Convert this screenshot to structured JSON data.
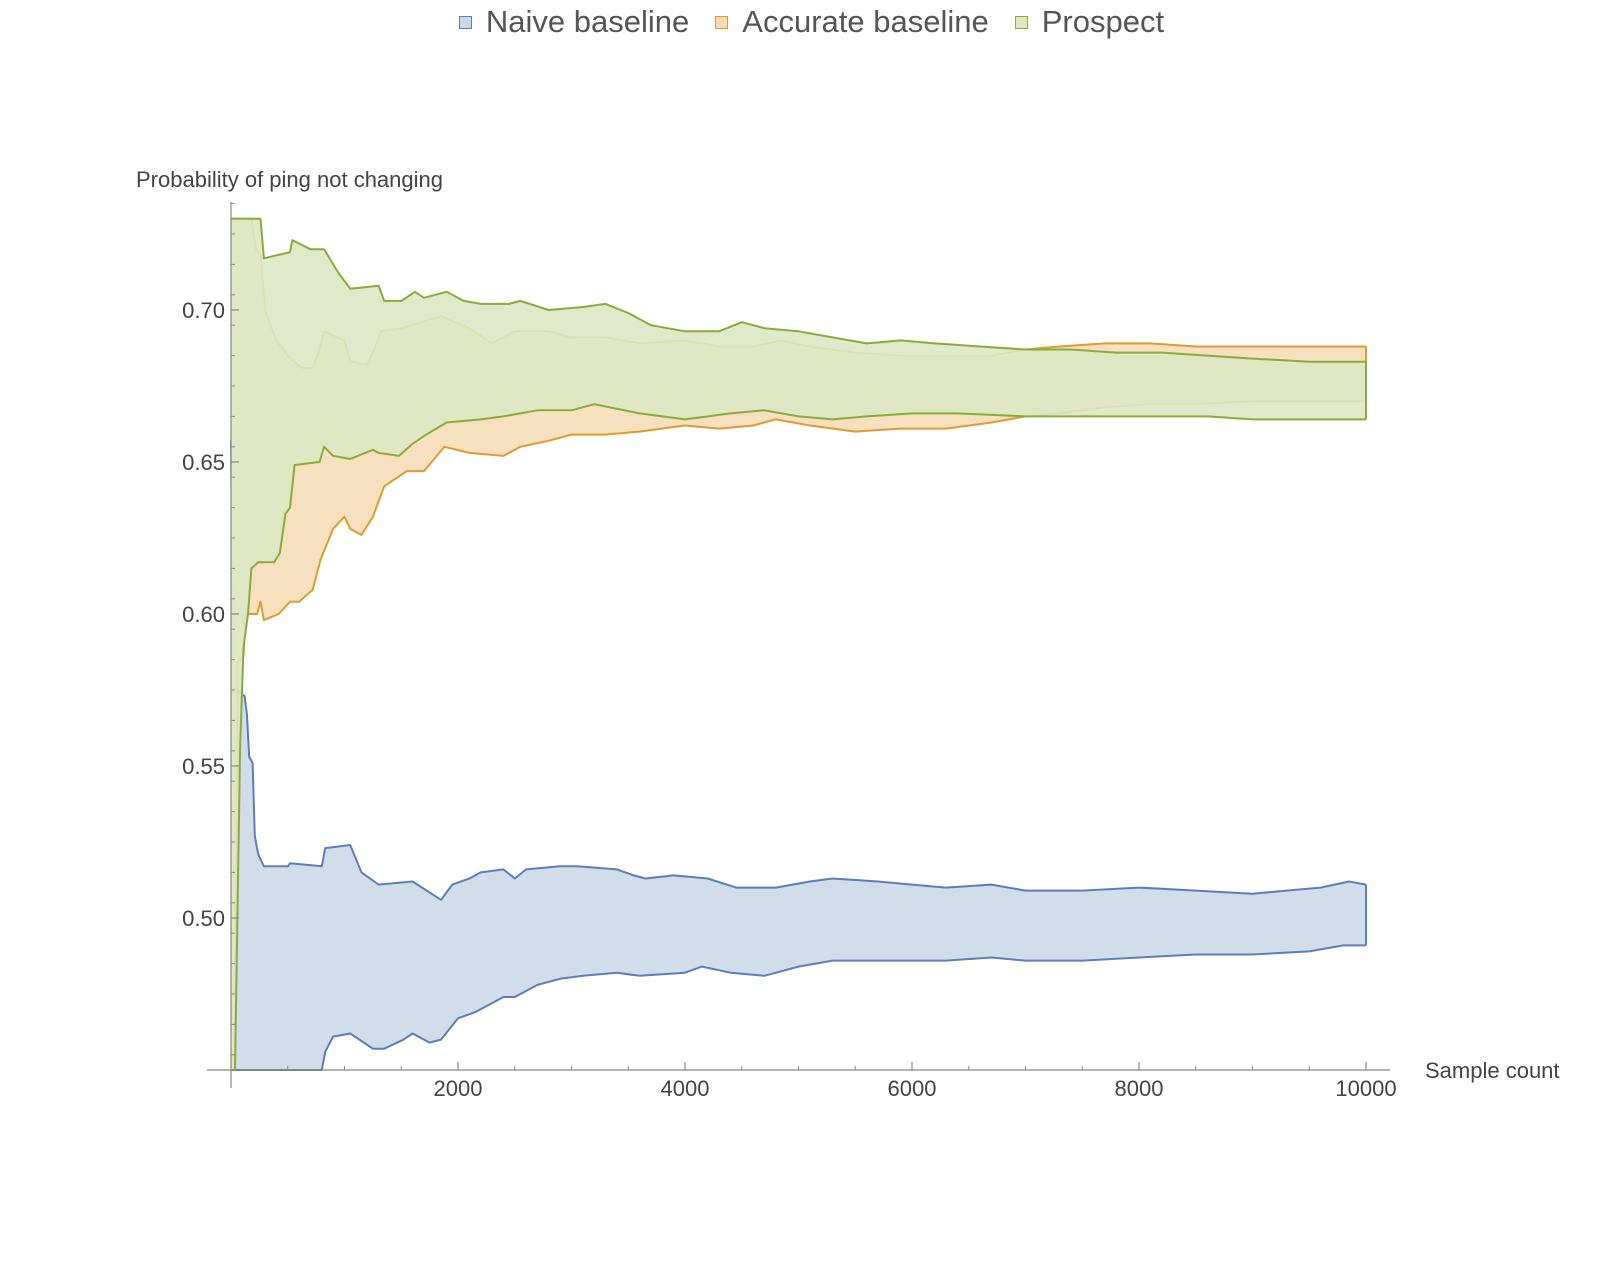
{
  "chart_data": {
    "type": "area",
    "title": "",
    "xlabel": "Sample count",
    "ylabel": "Probability of ping not changing",
    "xlim": [
      -250,
      10230
    ],
    "ylim": [
      0.45,
      0.735
    ],
    "x_ticks": [
      {
        "value": 2000,
        "label": "2000"
      },
      {
        "value": 4000,
        "label": "4000"
      },
      {
        "value": 6000,
        "label": "6000"
      },
      {
        "value": 8000,
        "label": "8000"
      },
      {
        "value": 10000,
        "label": "10000"
      }
    ],
    "y_ticks": [
      {
        "value": 0.5,
        "label": "0.50"
      },
      {
        "value": 0.55,
        "label": "0.55"
      },
      {
        "value": 0.6,
        "label": "0.60"
      },
      {
        "value": 0.65,
        "label": "0.65"
      },
      {
        "value": 0.7,
        "label": "0.70"
      }
    ],
    "grid": false,
    "legend_position": "top-center",
    "series": [
      {
        "name": "Naive baseline",
        "stroke": "#5b7fba",
        "fill": "#cdd9e8",
        "upper": [
          [
            0,
            0.657
          ],
          [
            20,
            0.576
          ],
          [
            80,
            0.574
          ],
          [
            120,
            0.573
          ],
          [
            140,
            0.567
          ],
          [
            160,
            0.553
          ],
          [
            190,
            0.551
          ],
          [
            210,
            0.527
          ],
          [
            240,
            0.521
          ],
          [
            290,
            0.517
          ],
          [
            500,
            0.517
          ],
          [
            520,
            0.518
          ],
          [
            800,
            0.517
          ],
          [
            830,
            0.523
          ],
          [
            1050,
            0.524
          ],
          [
            1150,
            0.515
          ],
          [
            1300,
            0.511
          ],
          [
            1600,
            0.512
          ],
          [
            1850,
            0.506
          ],
          [
            1950,
            0.511
          ],
          [
            2100,
            0.513
          ],
          [
            2200,
            0.515
          ],
          [
            2400,
            0.516
          ],
          [
            2500,
            0.513
          ],
          [
            2600,
            0.516
          ],
          [
            2900,
            0.517
          ],
          [
            3050,
            0.517
          ],
          [
            3400,
            0.516
          ],
          [
            3550,
            0.514
          ],
          [
            3650,
            0.513
          ],
          [
            3900,
            0.514
          ],
          [
            4200,
            0.513
          ],
          [
            4450,
            0.51
          ],
          [
            4800,
            0.51
          ],
          [
            5100,
            0.512
          ],
          [
            5300,
            0.513
          ],
          [
            5700,
            0.512
          ],
          [
            6000,
            0.511
          ],
          [
            6300,
            0.51
          ],
          [
            6700,
            0.511
          ],
          [
            7000,
            0.509
          ],
          [
            7500,
            0.509
          ],
          [
            8000,
            0.51
          ],
          [
            8500,
            0.509
          ],
          [
            9000,
            0.508
          ],
          [
            9300,
            0.509
          ],
          [
            9600,
            0.51
          ],
          [
            9850,
            0.512
          ],
          [
            10000,
            0.511
          ]
        ],
        "lower": [
          [
            0,
            0.45
          ],
          [
            20,
            0.45
          ],
          [
            800,
            0.45
          ],
          [
            830,
            0.456
          ],
          [
            900,
            0.461
          ],
          [
            1050,
            0.462
          ],
          [
            1250,
            0.457
          ],
          [
            1350,
            0.457
          ],
          [
            1520,
            0.46
          ],
          [
            1600,
            0.462
          ],
          [
            1750,
            0.459
          ],
          [
            1850,
            0.46
          ],
          [
            2000,
            0.467
          ],
          [
            2150,
            0.469
          ],
          [
            2300,
            0.472
          ],
          [
            2400,
            0.474
          ],
          [
            2500,
            0.474
          ],
          [
            2700,
            0.478
          ],
          [
            2900,
            0.48
          ],
          [
            3100,
            0.481
          ],
          [
            3400,
            0.482
          ],
          [
            3600,
            0.481
          ],
          [
            4000,
            0.482
          ],
          [
            4150,
            0.484
          ],
          [
            4400,
            0.482
          ],
          [
            4700,
            0.481
          ],
          [
            5000,
            0.484
          ],
          [
            5300,
            0.486
          ],
          [
            5800,
            0.486
          ],
          [
            6300,
            0.486
          ],
          [
            6700,
            0.487
          ],
          [
            7000,
            0.486
          ],
          [
            7500,
            0.486
          ],
          [
            8000,
            0.487
          ],
          [
            8500,
            0.488
          ],
          [
            9000,
            0.488
          ],
          [
            9500,
            0.489
          ],
          [
            9800,
            0.491
          ],
          [
            10000,
            0.491
          ]
        ]
      },
      {
        "name": "Accurate baseline",
        "stroke": "#e19c2e",
        "fill": "#f6ddb8",
        "upper": [
          [
            0,
            0.73
          ],
          [
            180,
            0.73
          ],
          [
            220,
            0.72
          ],
          [
            260,
            0.718
          ],
          [
            300,
            0.7
          ],
          [
            400,
            0.69
          ],
          [
            500,
            0.685
          ],
          [
            620,
            0.681
          ],
          [
            720,
            0.681
          ],
          [
            780,
            0.687
          ],
          [
            820,
            0.693
          ],
          [
            1000,
            0.69
          ],
          [
            1050,
            0.683
          ],
          [
            1200,
            0.682
          ],
          [
            1250,
            0.686
          ],
          [
            1320,
            0.693
          ],
          [
            1500,
            0.694
          ],
          [
            1680,
            0.696
          ],
          [
            1850,
            0.698
          ],
          [
            2100,
            0.694
          ],
          [
            2300,
            0.689
          ],
          [
            2500,
            0.693
          ],
          [
            2800,
            0.693
          ],
          [
            3000,
            0.691
          ],
          [
            3300,
            0.691
          ],
          [
            3600,
            0.689
          ],
          [
            4000,
            0.69
          ],
          [
            4300,
            0.688
          ],
          [
            4600,
            0.688
          ],
          [
            4850,
            0.69
          ],
          [
            5100,
            0.688
          ],
          [
            5500,
            0.686
          ],
          [
            5900,
            0.685
          ],
          [
            6300,
            0.685
          ],
          [
            6700,
            0.685
          ],
          [
            7000,
            0.687
          ],
          [
            7300,
            0.688
          ],
          [
            7700,
            0.689
          ],
          [
            8100,
            0.689
          ],
          [
            8500,
            0.688
          ],
          [
            9000,
            0.688
          ],
          [
            9500,
            0.688
          ],
          [
            10000,
            0.688
          ]
        ],
        "lower": [
          [
            0,
            0.45
          ],
          [
            35,
            0.45
          ],
          [
            60,
            0.584
          ],
          [
            110,
            0.586
          ],
          [
            130,
            0.6
          ],
          [
            230,
            0.6
          ],
          [
            260,
            0.604
          ],
          [
            290,
            0.598
          ],
          [
            420,
            0.6
          ],
          [
            520,
            0.604
          ],
          [
            600,
            0.604
          ],
          [
            720,
            0.608
          ],
          [
            790,
            0.618
          ],
          [
            900,
            0.628
          ],
          [
            1000,
            0.632
          ],
          [
            1050,
            0.628
          ],
          [
            1150,
            0.626
          ],
          [
            1250,
            0.632
          ],
          [
            1350,
            0.642
          ],
          [
            1550,
            0.647
          ],
          [
            1700,
            0.647
          ],
          [
            1880,
            0.655
          ],
          [
            2100,
            0.653
          ],
          [
            2400,
            0.652
          ],
          [
            2550,
            0.655
          ],
          [
            2800,
            0.657
          ],
          [
            3000,
            0.659
          ],
          [
            3300,
            0.659
          ],
          [
            3600,
            0.66
          ],
          [
            4000,
            0.662
          ],
          [
            4300,
            0.661
          ],
          [
            4600,
            0.662
          ],
          [
            4800,
            0.664
          ],
          [
            5100,
            0.662
          ],
          [
            5500,
            0.66
          ],
          [
            5900,
            0.661
          ],
          [
            6300,
            0.661
          ],
          [
            6700,
            0.663
          ],
          [
            7000,
            0.665
          ],
          [
            7300,
            0.666
          ],
          [
            7700,
            0.668
          ],
          [
            8100,
            0.669
          ],
          [
            8500,
            0.669
          ],
          [
            9000,
            0.67
          ],
          [
            9500,
            0.67
          ],
          [
            10000,
            0.67
          ]
        ]
      },
      {
        "name": "Prospect",
        "stroke": "#8aac3c",
        "fill": "#dde8c4",
        "upper": [
          [
            0,
            0.73
          ],
          [
            260,
            0.73
          ],
          [
            290,
            0.717
          ],
          [
            400,
            0.718
          ],
          [
            520,
            0.719
          ],
          [
            540,
            0.723
          ],
          [
            700,
            0.72
          ],
          [
            820,
            0.72
          ],
          [
            950,
            0.712
          ],
          [
            1050,
            0.707
          ],
          [
            1300,
            0.708
          ],
          [
            1350,
            0.703
          ],
          [
            1500,
            0.703
          ],
          [
            1620,
            0.706
          ],
          [
            1700,
            0.704
          ],
          [
            1900,
            0.706
          ],
          [
            2050,
            0.703
          ],
          [
            2200,
            0.702
          ],
          [
            2450,
            0.702
          ],
          [
            2550,
            0.703
          ],
          [
            2800,
            0.7
          ],
          [
            3100,
            0.701
          ],
          [
            3300,
            0.702
          ],
          [
            3500,
            0.699
          ],
          [
            3700,
            0.695
          ],
          [
            4000,
            0.693
          ],
          [
            4300,
            0.693
          ],
          [
            4500,
            0.696
          ],
          [
            4700,
            0.694
          ],
          [
            5000,
            0.693
          ],
          [
            5300,
            0.691
          ],
          [
            5600,
            0.689
          ],
          [
            5900,
            0.69
          ],
          [
            6200,
            0.689
          ],
          [
            6600,
            0.688
          ],
          [
            7000,
            0.687
          ],
          [
            7400,
            0.687
          ],
          [
            7800,
            0.686
          ],
          [
            8200,
            0.686
          ],
          [
            8600,
            0.685
          ],
          [
            9000,
            0.684
          ],
          [
            9500,
            0.683
          ],
          [
            10000,
            0.683
          ]
        ],
        "lower": [
          [
            0,
            0.45
          ],
          [
            35,
            0.45
          ],
          [
            80,
            0.556
          ],
          [
            110,
            0.589
          ],
          [
            150,
            0.6
          ],
          [
            180,
            0.615
          ],
          [
            240,
            0.617
          ],
          [
            380,
            0.617
          ],
          [
            430,
            0.62
          ],
          [
            480,
            0.633
          ],
          [
            520,
            0.635
          ],
          [
            560,
            0.649
          ],
          [
            780,
            0.65
          ],
          [
            820,
            0.655
          ],
          [
            900,
            0.652
          ],
          [
            1050,
            0.651
          ],
          [
            1250,
            0.654
          ],
          [
            1300,
            0.653
          ],
          [
            1480,
            0.652
          ],
          [
            1600,
            0.656
          ],
          [
            1720,
            0.659
          ],
          [
            1900,
            0.663
          ],
          [
            2200,
            0.664
          ],
          [
            2400,
            0.665
          ],
          [
            2700,
            0.667
          ],
          [
            3000,
            0.667
          ],
          [
            3200,
            0.669
          ],
          [
            3600,
            0.666
          ],
          [
            4000,
            0.664
          ],
          [
            4400,
            0.666
          ],
          [
            4700,
            0.667
          ],
          [
            5000,
            0.665
          ],
          [
            5300,
            0.664
          ],
          [
            5600,
            0.665
          ],
          [
            6000,
            0.666
          ],
          [
            6400,
            0.666
          ],
          [
            7000,
            0.665
          ],
          [
            7400,
            0.665
          ],
          [
            7800,
            0.665
          ],
          [
            8200,
            0.665
          ],
          [
            8600,
            0.665
          ],
          [
            9000,
            0.664
          ],
          [
            9500,
            0.664
          ],
          [
            10000,
            0.664
          ]
        ]
      }
    ]
  }
}
